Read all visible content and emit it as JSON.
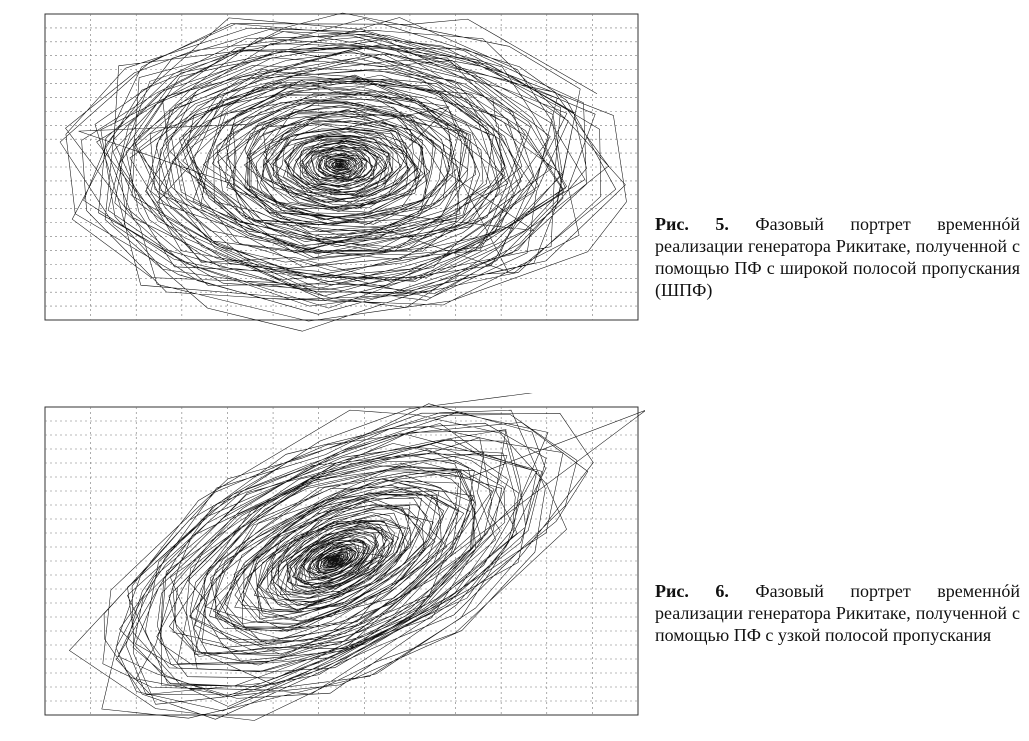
{
  "figures": [
    {
      "label": "Рис. 5.",
      "caption": "Фазовый портрет временнóй реализации генератора Рикитаке, полученной с помощью ПФ с широкой полосой пропускания (ШПФ)"
    },
    {
      "label": "Рис. 6.",
      "caption": "Фазовый портрет временнóй реализации генератора Рикитаке, полученной с помощью ПФ с узкой полосой пропускания"
    }
  ]
}
